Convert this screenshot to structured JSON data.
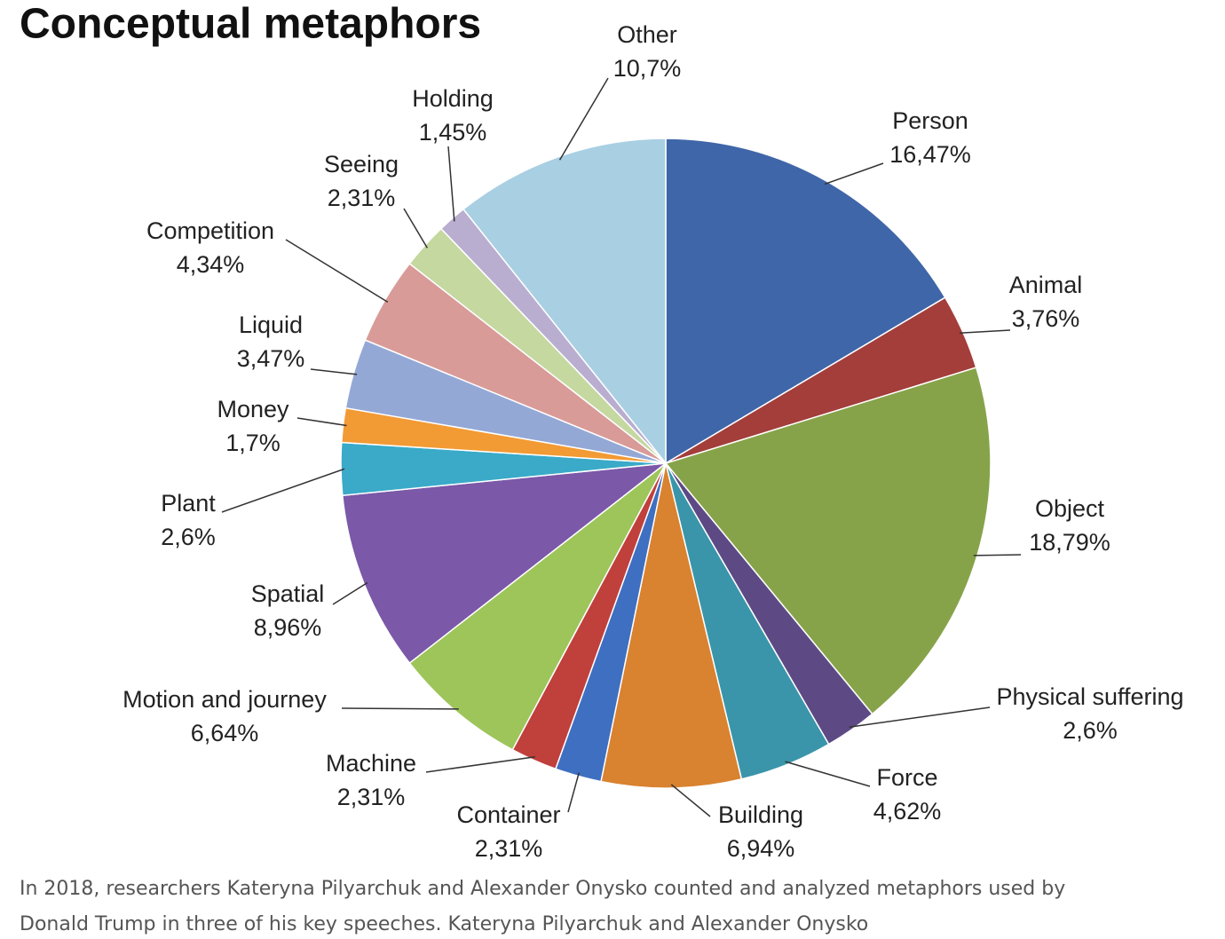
{
  "chart_data": {
    "type": "pie",
    "title": "Conceptual metaphors",
    "categories": [
      "Person",
      "Animal",
      "Object",
      "Physical suffering",
      "Force",
      "Building",
      "Container",
      "Machine",
      "Motion and journey",
      "Spatial",
      "Plant",
      "Money",
      "Liquid",
      "Competition",
      "Seeing",
      "Holding",
      "Other"
    ],
    "values": [
      16.47,
      3.76,
      18.79,
      2.6,
      4.62,
      6.94,
      2.31,
      2.31,
      6.64,
      8.96,
      2.6,
      1.7,
      3.47,
      4.34,
      2.31,
      1.45,
      10.7
    ],
    "value_labels": [
      "16,47%",
      "3,76%",
      "18,79%",
      "2,6%",
      "4,62%",
      "6,94%",
      "2,31%",
      "2,31%",
      "6,64%",
      "8,96%",
      "2,6%",
      "1,7%",
      "3,47%",
      "4,34%",
      "2,31%",
      "1,45%",
      "10,7%"
    ],
    "colors": [
      "#3f66a8",
      "#a33e3b",
      "#87a34a",
      "#5d4a85",
      "#3a95aa",
      "#d9822f",
      "#3f6fc1",
      "#c0403c",
      "#9dc55a",
      "#7b58a8",
      "#3aaac8",
      "#f29a34",
      "#94a8d6",
      "#d99b98",
      "#c4d8a0",
      "#b9aed0",
      "#a9cfe3"
    ]
  },
  "caption": [
    "In 2018, researchers Kateryna Pilyarchuk and Alexander Onysko counted and analyzed metaphors used by",
    "Donald Trump in three of his key speeches. Kateryna Pilyarchuk and Alexander Onysko"
  ]
}
